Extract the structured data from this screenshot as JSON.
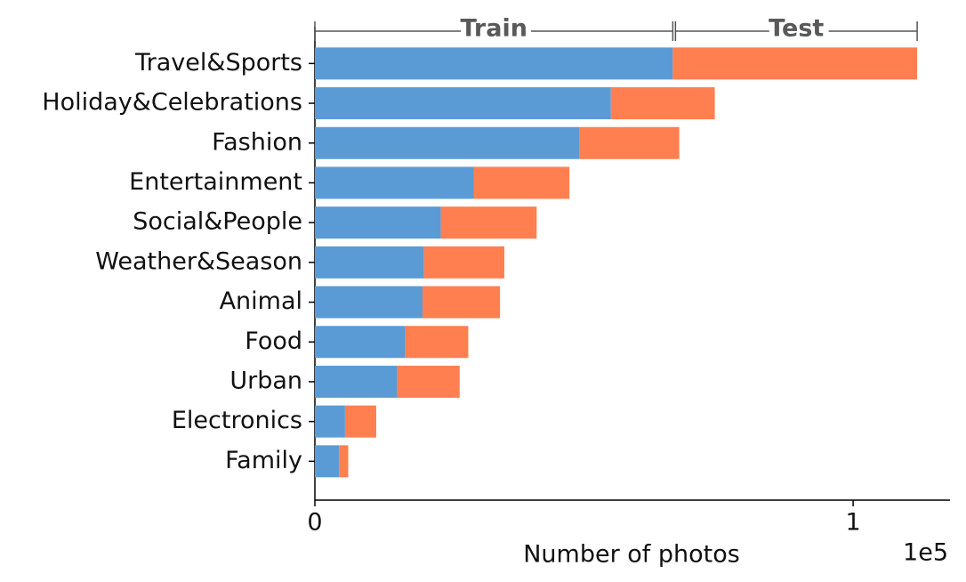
{
  "chart_data": {
    "type": "stacked-barh",
    "categories": [
      "Travel&Sports",
      "Holiday&Celebrations",
      "Fashion",
      "Entertainment",
      "Social&People",
      "Weather&Season",
      "Animal",
      "Food",
      "Urban",
      "Electronics",
      "Family"
    ],
    "series": [
      {
        "name": "Train",
        "color": "#5b9bd5",
        "values": [
          66500,
          55000,
          49200,
          29500,
          23400,
          20300,
          20000,
          16800,
          15300,
          5600,
          4500
        ]
      },
      {
        "name": "Test",
        "color": "#ff7f50",
        "values": [
          45400,
          19300,
          18500,
          17800,
          17800,
          14900,
          14400,
          11700,
          11600,
          5800,
          1700
        ]
      }
    ],
    "xlabel": "Number of photos",
    "x_offset_label": "1e5",
    "xlim": [
      0,
      118000
    ],
    "xticks": [
      0,
      {
        "value": 100000,
        "label": "1"
      }
    ]
  }
}
